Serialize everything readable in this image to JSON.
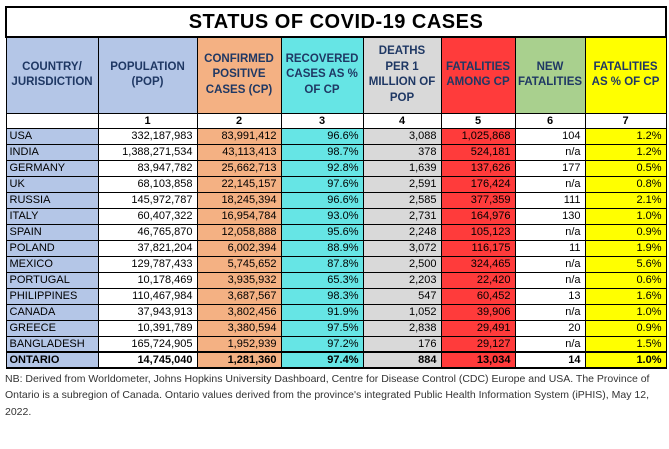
{
  "title": "STATUS OF COVID-19 CASES",
  "headers": [
    "COUNTRY/ JURISDICTION",
    "POPULATION (POP)",
    "CONFIRMED POSITIVE CASES (CP)",
    "RECOVERED CASES AS % OF CP",
    "DEATHS PER 1 MILLION OF POP",
    "FATALITIES AMONG CP",
    "NEW FATALITIES",
    "FATALITIES AS % OF CP"
  ],
  "column_numbers": [
    "",
    "1",
    "2",
    "3",
    "4",
    "5",
    "6",
    "7"
  ],
  "rows": [
    [
      "USA",
      "332,187,983",
      "83,991,412",
      "96.6%",
      "3,088",
      "1,025,868",
      "104",
      "1.2%"
    ],
    [
      "INDIA",
      "1,388,271,534",
      "43,113,413",
      "98.7%",
      "378",
      "524,181",
      "n/a",
      "1.2%"
    ],
    [
      "GERMANY",
      "83,947,782",
      "25,662,713",
      "92.8%",
      "1,639",
      "137,626",
      "177",
      "0.5%"
    ],
    [
      "UK",
      "68,103,858",
      "22,145,157",
      "97.6%",
      "2,591",
      "176,424",
      "n/a",
      "0.8%"
    ],
    [
      "RUSSIA",
      "145,972,787",
      "18,245,394",
      "96.6%",
      "2,585",
      "377,359",
      "111",
      "2.1%"
    ],
    [
      "ITALY",
      "60,407,322",
      "16,954,784",
      "93.0%",
      "2,731",
      "164,976",
      "130",
      "1.0%"
    ],
    [
      "SPAIN",
      "46,765,870",
      "12,058,888",
      "95.6%",
      "2,248",
      "105,123",
      "n/a",
      "0.9%"
    ],
    [
      "POLAND",
      "37,821,204",
      "6,002,394",
      "88.9%",
      "3,072",
      "116,175",
      "11",
      "1.9%"
    ],
    [
      "MEXICO",
      "129,787,433",
      "5,745,652",
      "87.8%",
      "2,500",
      "324,465",
      "n/a",
      "5.6%"
    ],
    [
      "PORTUGAL",
      "10,178,469",
      "3,935,932",
      "65.3%",
      "2,203",
      "22,420",
      "n/a",
      "0.6%"
    ],
    [
      "PHILIPPINES",
      "110,467,984",
      "3,687,567",
      "98.3%",
      "547",
      "60,452",
      "13",
      "1.6%"
    ],
    [
      "CANADA",
      "37,943,913",
      "3,802,456",
      "91.9%",
      "1,052",
      "39,906",
      "n/a",
      "1.0%"
    ],
    [
      "GREECE",
      "10,391,789",
      "3,380,594",
      "97.5%",
      "2,838",
      "29,491",
      "20",
      "0.9%"
    ],
    [
      "BANGLADESH",
      "165,724,905",
      "1,952,939",
      "97.2%",
      "176",
      "29,127",
      "n/a",
      "1.5%"
    ]
  ],
  "ontario_row": [
    "ONTARIO",
    "14,745,040",
    "1,281,360",
    "97.4%",
    "884",
    "13,034",
    "14",
    "1.0%"
  ],
  "note": "NB: Derived from Worldometer, Johns Hopkins University Dashboard, Centre for Disease Control (CDC) Europe and USA. The Province of Ontario is a subregion of Canada. Ontario values derived from the province's integrated Public Health Information System (iPHIS), May 12, 2022.",
  "colors": {
    "country": "#b4c6e7",
    "population": "#ffffff",
    "confirmed": "#f4b183",
    "recovered": "#66e5e5",
    "deaths_per_million": "#d9d9d9",
    "fatalities": "#ff3b3b",
    "new_fatalities": "#ffffff",
    "fatality_pct": "#ffff00",
    "header_text": "#1f3864"
  }
}
